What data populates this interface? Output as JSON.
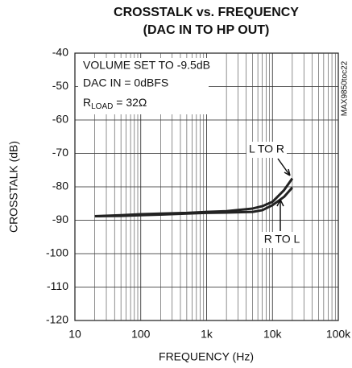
{
  "chart_data": {
    "type": "line",
    "title": [
      "CROSSTALK vs. FREQUENCY",
      "(DAC IN TO HP OUT)"
    ],
    "x_label": "FREQUENCY (Hz)",
    "y_label": "CROSSTALK (dB)",
    "annotations": [
      "VOLUME SET TO -9.5dB",
      "DAC IN = 0dBFS",
      [
        "R",
        "LOAD",
        " = 32Ω"
      ]
    ],
    "watermark": "MAX9850toc22",
    "x": [
      20,
      50,
      100,
      200,
      500,
      1000,
      2000,
      5000,
      7000,
      10000,
      15000,
      20000
    ],
    "series": [
      {
        "name": "L TO R",
        "color": "#222222",
        "values": [
          -88.8,
          -88.5,
          -88.2,
          -88.0,
          -87.8,
          -87.5,
          -87.3,
          -86.5,
          -85.8,
          -84.5,
          -81.0,
          -77.5
        ]
      },
      {
        "name": "R TO L",
        "color": "#222222",
        "values": [
          -88.8,
          -88.7,
          -88.5,
          -88.3,
          -88.0,
          -87.8,
          -87.7,
          -87.5,
          -87.0,
          -85.5,
          -83.0,
          -80.2
        ]
      }
    ],
    "xlim": [
      10,
      100000
    ],
    "xticks": [
      10,
      100,
      {
        "value": 1000,
        "label": "1k"
      },
      {
        "value": 10000,
        "label": "10k"
      },
      {
        "value": 100000,
        "label": "100k"
      }
    ],
    "ylim": [
      -120,
      -40
    ],
    "yticks": [
      -120,
      -110,
      -100,
      -90,
      -80,
      -70,
      -60,
      -50,
      -40
    ],
    "xscale": "log",
    "grid": true,
    "minor_grid": true
  }
}
